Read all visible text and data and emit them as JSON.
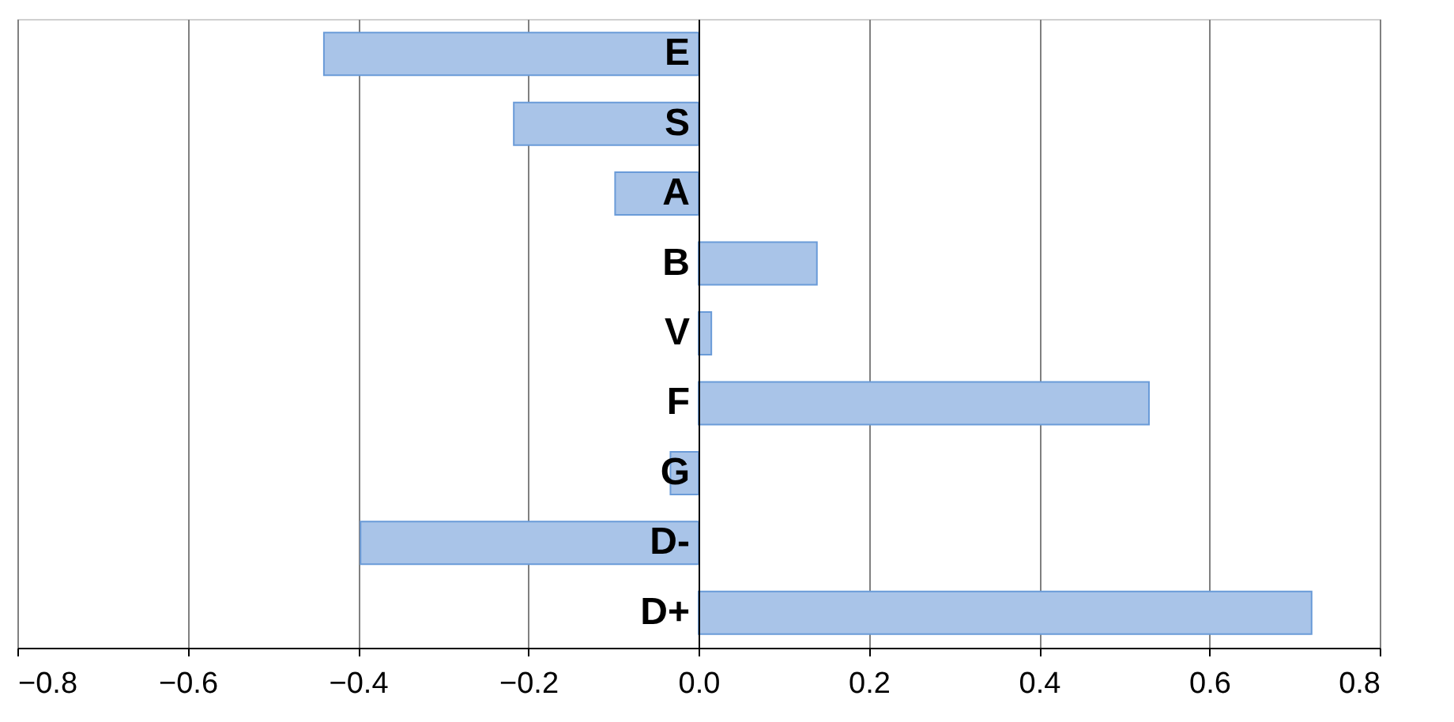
{
  "chart_data": {
    "type": "bar",
    "orientation": "horizontal",
    "categories": [
      "E",
      "S",
      "A",
      "B",
      "V",
      "F",
      "G",
      "D-",
      "D+"
    ],
    "values": [
      -0.44,
      -0.217,
      -0.098,
      0.139,
      0.015,
      0.529,
      -0.033,
      -0.397,
      0.72
    ],
    "color": "#a9c4e8",
    "xlim": [
      -0.8,
      0.8
    ],
    "xticks": [
      -0.8,
      -0.6,
      -0.4,
      -0.2,
      {
        "value": 0,
        "label": "0.0"
      },
      0.2,
      0.4,
      0.6,
      0.8
    ],
    "grid": "x",
    "legend": false
  }
}
